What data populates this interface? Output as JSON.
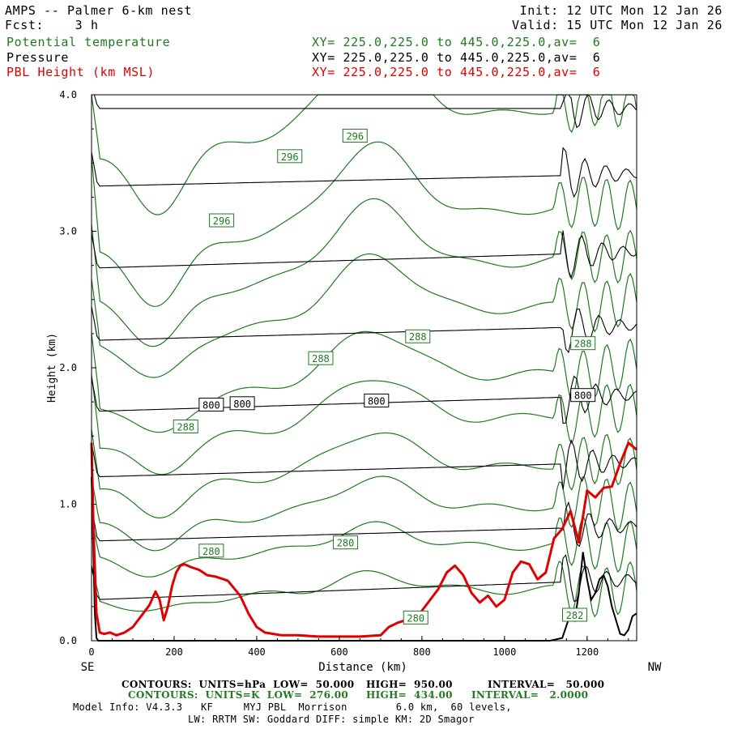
{
  "header": {
    "title": "AMPS -- Palmer 6-km nest",
    "fcst": "Fcst:    3 h",
    "init": "Init: 12 UTC Mon 12 Jan 26",
    "valid": "Valid: 15 UTC Mon 12 Jan 26",
    "fields": [
      {
        "name": "Potential temperature",
        "xy": "XY= 225.0,225.0 to 445.0,225.0,av=  6",
        "color": "#1f7a1f"
      },
      {
        "name": "Pressure",
        "xy": "XY= 225.0,225.0 to 445.0,225.0,av=  6",
        "color": "#000000"
      },
      {
        "name": "PBL Height (km MSL)",
        "xy": "XY= 225.0,225.0 to 445.0,225.0,av=  6",
        "color": "#e00000"
      }
    ]
  },
  "footer": {
    "end_left": "SE",
    "end_right": "NW",
    "pressure_contours": {
      "label": "CONTOURS:  UNITS=hPa  LOW=  50.000",
      "high": "HIGH=  950.00",
      "interval": "INTERVAL=   50.000"
    },
    "theta_contours": {
      "label": "CONTOURS:  UNITS=K  LOW=  276.00",
      "high": "HIGH=  434.00",
      "interval": "INTERVAL=   2.0000"
    },
    "model_info_1": "Model Info: V4.3.3   KF     MYJ PBL  Morrison        6.0 km,  60 levels,",
    "model_info_2": "LW: RRTM SW: Goddard DIFF: simple KM: 2D Smagor"
  },
  "chart_data": {
    "type": "line",
    "title": "AMPS -- Palmer 6-km nest",
    "xlabel": "Distance (km)",
    "ylabel": "Height (km)",
    "xlim": [
      0,
      1320
    ],
    "ylim": [
      0,
      4.0
    ],
    "xticks": [
      0,
      200,
      400,
      600,
      800,
      1000,
      1200
    ],
    "yticks": [
      0.0,
      1.0,
      2.0,
      3.0,
      4.0
    ],
    "ytick_labels": [
      "0.0",
      "1.0",
      "2.0",
      "3.0",
      "4.0"
    ],
    "colors": {
      "theta": "#1f7a1f",
      "pressure": "#000000",
      "pbl": "#e00000"
    },
    "pressure_lines": [
      {
        "y0": 3.9,
        "y1": 3.9
      },
      {
        "y0": 3.33,
        "y1": 3.42
      },
      {
        "y0": 2.73,
        "y1": 2.85
      },
      {
        "y0": 2.2,
        "y1": 2.31
      },
      {
        "y0": 1.68,
        "y1": 1.8
      },
      {
        "y0": 1.2,
        "y1": 1.31
      },
      {
        "y0": 0.73,
        "y1": 0.84
      },
      {
        "y0": 0.3,
        "y1": 0.45
      }
    ],
    "pressure_labels": [
      {
        "text": "800",
        "x": 290,
        "y": 1.73
      },
      {
        "text": "800",
        "x": 365,
        "y": 1.74
      },
      {
        "text": "800",
        "x": 690,
        "y": 1.76
      },
      {
        "text": "800",
        "x": 1190,
        "y": 1.8
      }
    ],
    "theta_lines": [
      {
        "base": 3.55,
        "amp": 0.45,
        "top": 4.0
      },
      {
        "base": 2.85,
        "amp": 0.42,
        "top": 3.55
      },
      {
        "base": 2.5,
        "amp": 0.38,
        "top": 3.05
      },
      {
        "base": 2.2,
        "amp": 0.33,
        "top": 2.65
      },
      {
        "base": 1.75,
        "amp": 0.28,
        "top": 2.25
      },
      {
        "base": 1.45,
        "amp": 0.26,
        "top": 1.95
      },
      {
        "base": 1.12,
        "amp": 0.22,
        "top": 1.55
      },
      {
        "base": 0.85,
        "amp": 0.18,
        "top": 1.2
      },
      {
        "base": 0.6,
        "amp": 0.13,
        "top": 0.9
      },
      {
        "base": 0.3,
        "amp": 0.1,
        "top": 0.55
      }
    ],
    "theta_labels": [
      {
        "text": "296",
        "x": 638,
        "y": 3.7
      },
      {
        "text": "296",
        "x": 480,
        "y": 3.55
      },
      {
        "text": "296",
        "x": 315,
        "y": 3.08
      },
      {
        "text": "288",
        "x": 790,
        "y": 2.23
      },
      {
        "text": "288",
        "x": 555,
        "y": 2.07
      },
      {
        "text": "288",
        "x": 228,
        "y": 1.57
      },
      {
        "text": "288",
        "x": 1190,
        "y": 2.18
      },
      {
        "text": "280",
        "x": 615,
        "y": 0.72
      },
      {
        "text": "280",
        "x": 290,
        "y": 0.66
      },
      {
        "text": "280",
        "x": 785,
        "y": 0.17
      },
      {
        "text": "282",
        "x": 1170,
        "y": 0.19
      }
    ],
    "pbl_height": {
      "x": [
        0,
        5,
        12,
        20,
        30,
        45,
        60,
        80,
        100,
        120,
        140,
        155,
        165,
        175,
        185,
        195,
        205,
        215,
        225,
        240,
        260,
        280,
        300,
        330,
        360,
        380,
        400,
        420,
        440,
        460,
        500,
        550,
        600,
        650,
        700,
        720,
        740,
        760,
        780,
        800,
        820,
        840,
        860,
        880,
        900,
        920,
        940,
        960,
        980,
        1000,
        1020,
        1040,
        1060,
        1080,
        1100,
        1120,
        1140,
        1160,
        1180,
        1200,
        1220,
        1240,
        1260,
        1280,
        1300,
        1320
      ],
      "y": [
        1.45,
        0.8,
        0.2,
        0.06,
        0.05,
        0.06,
        0.04,
        0.06,
        0.1,
        0.18,
        0.26,
        0.36,
        0.3,
        0.15,
        0.25,
        0.4,
        0.5,
        0.55,
        0.56,
        0.54,
        0.52,
        0.48,
        0.47,
        0.44,
        0.33,
        0.2,
        0.1,
        0.06,
        0.05,
        0.04,
        0.04,
        0.03,
        0.03,
        0.03,
        0.04,
        0.1,
        0.13,
        0.15,
        0.16,
        0.22,
        0.3,
        0.38,
        0.5,
        0.55,
        0.48,
        0.35,
        0.28,
        0.33,
        0.25,
        0.3,
        0.5,
        0.58,
        0.56,
        0.45,
        0.5,
        0.75,
        0.82,
        0.95,
        0.72,
        1.1,
        1.05,
        1.12,
        1.13,
        1.3,
        1.45,
        1.4
      ]
    },
    "terrain_line": {
      "x": [
        0,
        4,
        8,
        12,
        16,
        1110,
        1140,
        1160,
        1170,
        1180,
        1190,
        1200,
        1210,
        1220,
        1230,
        1240,
        1250,
        1260,
        1270,
        1280,
        1290,
        1300,
        1310,
        1320
      ],
      "y": [
        1.2,
        0.7,
        0.2,
        0.02,
        0.0,
        0.0,
        0.02,
        0.2,
        0.15,
        0.35,
        0.65,
        0.45,
        0.3,
        0.35,
        0.45,
        0.48,
        0.4,
        0.25,
        0.15,
        0.05,
        0.04,
        0.08,
        0.18,
        0.2
      ]
    }
  }
}
